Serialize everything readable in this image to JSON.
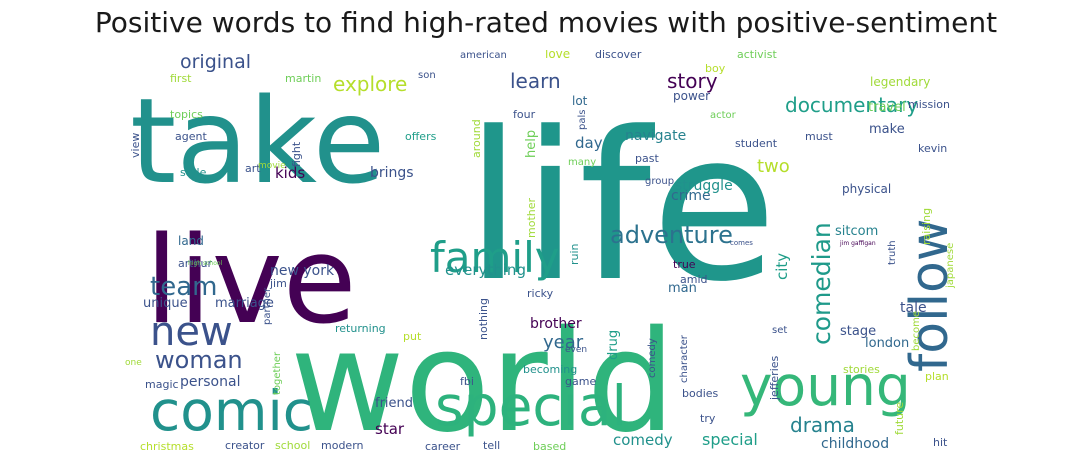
{
  "title": "Positive words to find high-rated movies with positive-sentiment",
  "words": [
    {
      "text": "take",
      "color": "#21918c"
    },
    {
      "text": "life",
      "color": "#1f968b"
    },
    {
      "text": "live",
      "color": "#440154"
    },
    {
      "text": "world",
      "color": "#2fb47c"
    },
    {
      "text": "comic",
      "color": "#21918c"
    },
    {
      "text": "special",
      "color": "#2db27d"
    },
    {
      "text": "young",
      "color": "#35b779"
    },
    {
      "text": "follow",
      "color": "#31688e"
    },
    {
      "text": "family",
      "color": "#1f9e89"
    },
    {
      "text": "new",
      "color": "#3b528b"
    },
    {
      "text": "woman",
      "color": "#3b528b"
    },
    {
      "text": "team",
      "color": "#31688e"
    },
    {
      "text": "adventure",
      "color": "#2c728e"
    },
    {
      "text": "comedian",
      "color": "#1f9a8a"
    },
    {
      "text": "documentary",
      "color": "#1f9e89"
    },
    {
      "text": "original",
      "color": "#3b528b"
    },
    {
      "text": "explore",
      "color": "#b5de2b"
    },
    {
      "text": "learn",
      "color": "#3b528b"
    },
    {
      "text": "story",
      "color": "#440154"
    },
    {
      "text": "drama",
      "color": "#26828e"
    },
    {
      "text": "two",
      "color": "#b5de2b"
    },
    {
      "text": "year",
      "color": "#31688e"
    },
    {
      "text": "crime",
      "color": "#31688e"
    },
    {
      "text": "comedy",
      "color": "#21918c"
    },
    {
      "text": "special",
      "color": "#1f9e89"
    },
    {
      "text": "star",
      "color": "#440154"
    },
    {
      "text": "kids",
      "color": "#440154"
    },
    {
      "text": "everything",
      "color": "#21918c"
    },
    {
      "text": "new york",
      "color": "#3b528b"
    },
    {
      "text": "brings",
      "color": "#3b528b"
    },
    {
      "text": "day",
      "color": "#31688e"
    },
    {
      "text": "navigate",
      "color": "#26828e"
    },
    {
      "text": "struggle",
      "color": "#21918c"
    },
    {
      "text": "sitcom",
      "color": "#26828e"
    },
    {
      "text": "stage",
      "color": "#3b528b"
    },
    {
      "text": "brother",
      "color": "#440154"
    },
    {
      "text": "childhood",
      "color": "#31688e"
    },
    {
      "text": "friend",
      "color": "#3b528b"
    },
    {
      "text": "personal",
      "color": "#3b528b"
    },
    {
      "text": "man",
      "color": "#31688e"
    },
    {
      "text": "tale",
      "color": "#3b528b"
    },
    {
      "text": "london",
      "color": "#31688e"
    },
    {
      "text": "physical",
      "color": "#3b528b"
    },
    {
      "text": "city",
      "color": "#1f9e89"
    },
    {
      "text": "marriage",
      "color": "#3b528b"
    },
    {
      "text": "unique",
      "color": "#3b528b"
    },
    {
      "text": "land",
      "color": "#31688e"
    },
    {
      "text": "arthur",
      "color": "#3b528b"
    },
    {
      "text": "drug",
      "color": "#1f9e89"
    },
    {
      "text": "help",
      "color": "#6ece58"
    },
    {
      "text": "travel",
      "color": "#6ece58"
    },
    {
      "text": "make",
      "color": "#3b528b"
    },
    {
      "text": "power",
      "color": "#3b528b"
    },
    {
      "text": "lot",
      "color": "#31688e"
    },
    {
      "text": "legendary",
      "color": "#a0da39"
    },
    {
      "text": "love",
      "color": "#b5de2b"
    },
    {
      "text": "discover",
      "color": "#3b528b"
    },
    {
      "text": "boy",
      "color": "#b5de2b"
    },
    {
      "text": "activist",
      "color": "#6ece58"
    },
    {
      "text": "american",
      "color": "#3b528b"
    },
    {
      "text": "son",
      "color": "#3b528b"
    },
    {
      "text": "first",
      "color": "#a0da39"
    },
    {
      "text": "martin",
      "color": "#6ece58"
    },
    {
      "text": "topics",
      "color": "#6ece58"
    },
    {
      "text": "agent",
      "color": "#3b528b"
    },
    {
      "text": "view",
      "color": "#3b528b"
    },
    {
      "text": "fight",
      "color": "#3b528b"
    },
    {
      "text": "offers",
      "color": "#1f9e89"
    },
    {
      "text": "four",
      "color": "#3b528b"
    },
    {
      "text": "around",
      "color": "#a0da39"
    },
    {
      "text": "actor",
      "color": "#6ece58"
    },
    {
      "text": "must",
      "color": "#3b528b"
    },
    {
      "text": "mission",
      "color": "#3b528b"
    },
    {
      "text": "pals",
      "color": "#3b528b"
    },
    {
      "text": "student",
      "color": "#3b528b"
    },
    {
      "text": "kevin",
      "color": "#3b528b"
    },
    {
      "text": "mother",
      "color": "#a0da39"
    },
    {
      "text": "many",
      "color": "#6ece58"
    },
    {
      "text": "past",
      "color": "#3b528b"
    },
    {
      "text": "ruin",
      "color": "#21918c"
    },
    {
      "text": "group",
      "color": "#3b528b"
    },
    {
      "text": "jim gaffigan",
      "color": "#440154"
    },
    {
      "text": "style",
      "color": "#21918c"
    },
    {
      "text": "art",
      "color": "#3b528b"
    },
    {
      "text": "movie",
      "color": "#a0da39"
    },
    {
      "text": "partner",
      "color": "#3b528b"
    },
    {
      "text": "returning",
      "color": "#21918c"
    },
    {
      "text": "true",
      "color": "#440154"
    },
    {
      "text": "amid",
      "color": "#3b528b"
    },
    {
      "text": "raising",
      "color": "#a0da39"
    },
    {
      "text": "ricky",
      "color": "#3b528b"
    },
    {
      "text": "jim",
      "color": "#3b528b"
    },
    {
      "text": "truth",
      "color": "#3b528b"
    },
    {
      "text": "comes",
      "color": "#3b528b"
    },
    {
      "text": "japanese",
      "color": "#a0da39"
    },
    {
      "text": "high school",
      "color": "#6ece58"
    },
    {
      "text": "become",
      "color": "#a0da39"
    },
    {
      "text": "nothing",
      "color": "#3b528b"
    },
    {
      "text": "put",
      "color": "#b5de2b"
    },
    {
      "text": "together",
      "color": "#6ece58"
    },
    {
      "text": "comedy",
      "color": "#3b528b"
    },
    {
      "text": "character",
      "color": "#3b528b"
    },
    {
      "text": "jefferies",
      "color": "#3b528b"
    },
    {
      "text": "set",
      "color": "#3b528b"
    },
    {
      "text": "one",
      "color": "#a0da39"
    },
    {
      "text": "magic",
      "color": "#3b528b"
    },
    {
      "text": "even",
      "color": "#3b528b"
    },
    {
      "text": "becoming",
      "color": "#21918c"
    },
    {
      "text": "game",
      "color": "#3b528b"
    },
    {
      "text": "bodies",
      "color": "#3b528b"
    },
    {
      "text": "stories",
      "color": "#a0da39"
    },
    {
      "text": "plan",
      "color": "#b5de2b"
    },
    {
      "text": "fbi",
      "color": "#3b528b"
    },
    {
      "text": "future",
      "color": "#a0da39"
    },
    {
      "text": "hit",
      "color": "#3b528b"
    },
    {
      "text": "try",
      "color": "#3b528b"
    },
    {
      "text": "christmas",
      "color": "#b5de2b"
    },
    {
      "text": "creator",
      "color": "#3b528b"
    },
    {
      "text": "school",
      "color": "#a0da39"
    },
    {
      "text": "modern",
      "color": "#3b528b"
    },
    {
      "text": "career",
      "color": "#3b528b"
    },
    {
      "text": "tell",
      "color": "#3b528b"
    },
    {
      "text": "based",
      "color": "#6ece58"
    }
  ]
}
